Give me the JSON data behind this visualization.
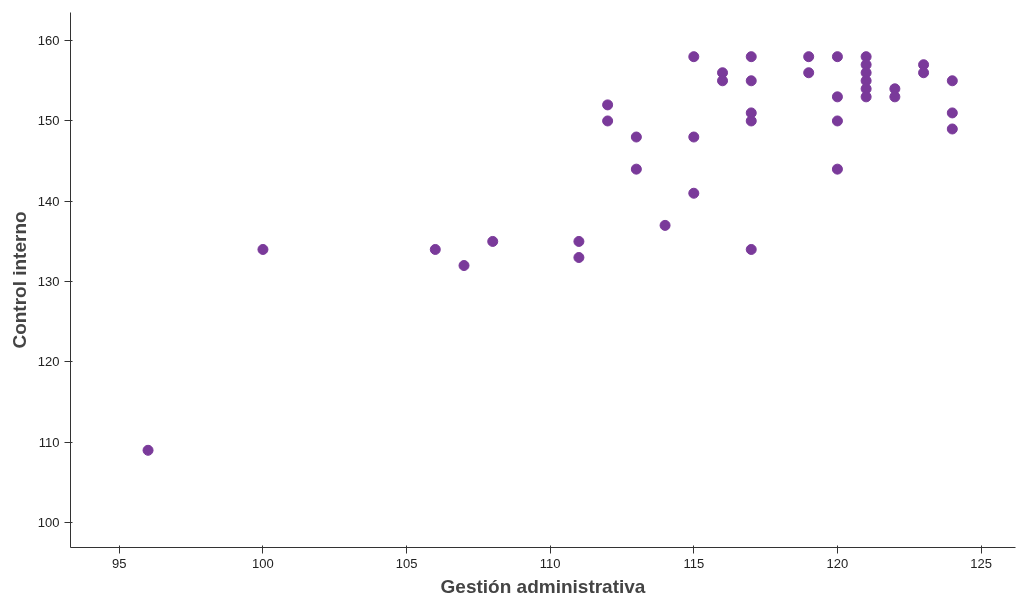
{
  "chart_data": {
    "type": "scatter",
    "xlabel": "Gestión administrativa",
    "ylabel": "Control interno",
    "x": [
      96,
      100,
      106,
      107,
      108,
      111,
      111,
      112,
      112,
      113,
      113,
      114,
      115,
      115,
      115,
      116,
      116,
      117,
      117,
      117,
      117,
      117,
      119,
      119,
      120,
      120,
      120,
      120,
      121,
      121,
      121,
      121,
      121,
      121,
      122,
      122,
      123,
      123,
      124,
      124,
      124
    ],
    "series": [
      {
        "color": "#7a3a9a",
        "values": [
          109,
          134,
          134,
          132,
          135,
          135,
          133,
          152,
          150,
          148,
          144,
          137,
          158,
          148,
          141,
          156,
          155,
          158,
          155,
          151,
          150,
          134,
          158,
          156,
          158,
          153,
          150,
          144,
          158,
          157,
          156,
          155,
          154,
          153,
          154,
          153,
          157,
          156,
          155,
          151,
          149
        ]
      }
    ],
    "xlim": [
      93.3,
      126.2
    ],
    "ylim": [
      96.9,
      163.5
    ],
    "xticks": [
      95,
      100,
      105,
      110,
      115,
      120,
      125
    ],
    "yticks": [
      100,
      110,
      120,
      130,
      140,
      150,
      160
    ],
    "grid": false,
    "marker": "circle"
  }
}
